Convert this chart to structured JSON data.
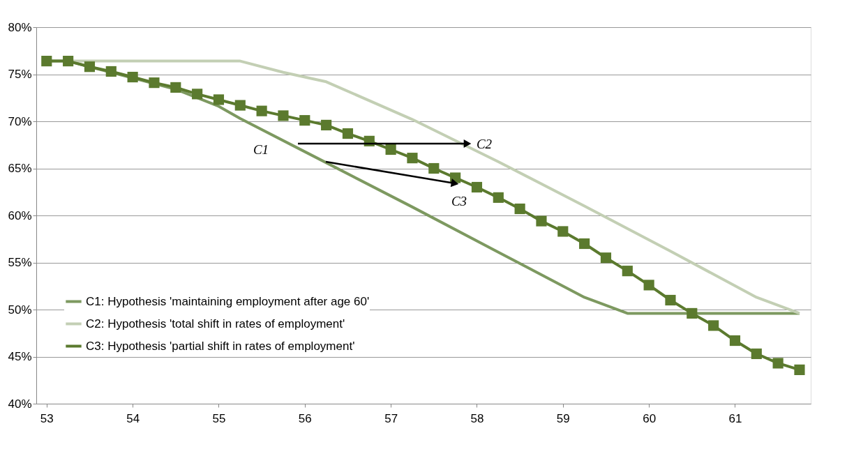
{
  "chart_data": {
    "type": "line",
    "xlim": [
      52.88,
      61.88
    ],
    "xticks": [
      53,
      54,
      55,
      56,
      57,
      58,
      59,
      60,
      61
    ],
    "ylim": [
      40,
      80
    ],
    "yticks": [
      {
        "value": 40,
        "label": "40%"
      },
      {
        "value": 45,
        "label": "45%"
      },
      {
        "value": 50,
        "label": "50%"
      },
      {
        "value": 55,
        "label": "55%"
      },
      {
        "value": 60,
        "label": "60%"
      },
      {
        "value": 65,
        "label": "65%"
      },
      {
        "value": 70,
        "label": "70%"
      },
      {
        "value": 75,
        "label": "75%"
      },
      {
        "value": 80,
        "label": "80%"
      }
    ],
    "grid": "y",
    "legend": "bottom left",
    "line_style": "solid",
    "series": [
      {
        "name": "C1: Hypothesis 'maintaining employment after age 60'",
        "color": "#7d9960",
        "marker": "none",
        "x": [
          53,
          53.25,
          53.5,
          54,
          54.5,
          55,
          55.25,
          56.25,
          57.25,
          58.25,
          59.25,
          59.75,
          61.75
        ],
        "values": [
          76.4,
          76.4,
          75.8,
          74.6,
          73.4,
          71.6,
          70.3,
          65.6,
          60.9,
          56.1,
          51.3,
          49.6,
          49.6
        ]
      },
      {
        "name": "C2: Hypothesis 'total shift in rates of employment'",
        "color": "#c3cfb4",
        "marker": "none",
        "x": [
          53,
          55.25,
          55.75,
          56.25,
          57.25,
          58.25,
          59.25,
          60.25,
          61.25,
          61.75
        ],
        "values": [
          76.4,
          76.4,
          75.2,
          74.2,
          70.2,
          65.7,
          61.0,
          56.2,
          51.3,
          49.6
        ]
      },
      {
        "name": "C3: Hypothesis 'partial shift in rates of employment'",
        "color": "#5b7a2e",
        "marker": "square",
        "x": [
          53,
          53.25,
          53.5,
          53.75,
          54,
          54.25,
          54.5,
          54.75,
          55,
          55.25,
          55.5,
          55.75,
          56,
          56.25,
          56.5,
          56.75,
          57,
          57.25,
          57.5,
          57.75,
          58,
          58.25,
          58.5,
          58.75,
          59,
          59.25,
          59.5,
          59.75,
          60,
          60.25,
          60.5,
          60.75,
          61,
          61.25,
          61.5,
          61.75
        ],
        "values": [
          76.4,
          76.4,
          75.8,
          75.3,
          74.7,
          74.1,
          73.6,
          72.9,
          72.3,
          71.7,
          71.1,
          70.6,
          70.1,
          69.6,
          68.7,
          67.9,
          67.0,
          66.1,
          65.0,
          64.0,
          63.0,
          61.9,
          60.7,
          59.4,
          58.3,
          57.0,
          55.5,
          54.1,
          52.6,
          51.0,
          49.6,
          48.3,
          46.7,
          45.3,
          44.3,
          43.6
        ]
      }
    ],
    "annotations": [
      "C1",
      "C2",
      "C3"
    ]
  }
}
